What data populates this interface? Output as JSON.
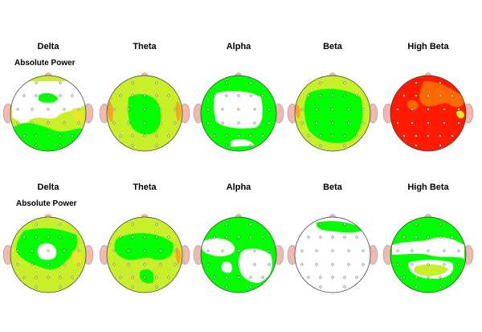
{
  "rows": [
    {
      "label": "Absolute Power",
      "maps": [
        {
          "band": "Delta",
          "base": "yellowgreen"
        },
        {
          "band": "Theta",
          "base": "yellowgreen"
        },
        {
          "band": "Alpha",
          "base": "green"
        },
        {
          "band": "Beta",
          "base": "yellowgreen"
        },
        {
          "band": "High Beta",
          "base": "red"
        }
      ]
    },
    {
      "label": "Absolute Power",
      "maps": [
        {
          "band": "Delta",
          "base": "yellowgreen"
        },
        {
          "band": "Theta",
          "base": "yellowgreen"
        },
        {
          "band": "Alpha",
          "base": "green"
        },
        {
          "band": "Beta",
          "base": "white"
        },
        {
          "band": "High Beta",
          "base": "green"
        }
      ]
    }
  ],
  "palette": {
    "white": "#ffffff",
    "green": "#00ff00",
    "yellowgreen": "#c8ef2a",
    "yellow": "#e8e82a",
    "orange": "#f5a623",
    "red": "#ff1a00",
    "darkorange": "#ff6a00",
    "ear": "#f0b8b0"
  }
}
